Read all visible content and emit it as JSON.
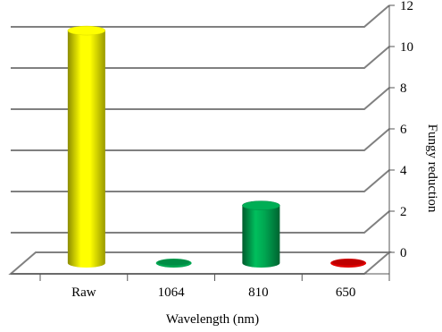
{
  "chart_data": {
    "type": "bar",
    "style": "3d-cylinder",
    "categories": [
      "Raw",
      "1064",
      "810",
      "650"
    ],
    "values": [
      11.3,
      0.05,
      2.8,
      0.05
    ],
    "bar_colors": [
      "#ffff00",
      "#00a651",
      "#00a651",
      "#e00000"
    ],
    "title": "",
    "xlabel": "Wavelength (nm)",
    "ylabel": "Fungy reduction",
    "ylim": [
      0,
      12
    ],
    "yticks": [
      0,
      2,
      4,
      6,
      8,
      10,
      12
    ],
    "grid": true,
    "y_axis_side": "right"
  },
  "colors": {
    "grid": "#808080",
    "axis": "#555555"
  }
}
